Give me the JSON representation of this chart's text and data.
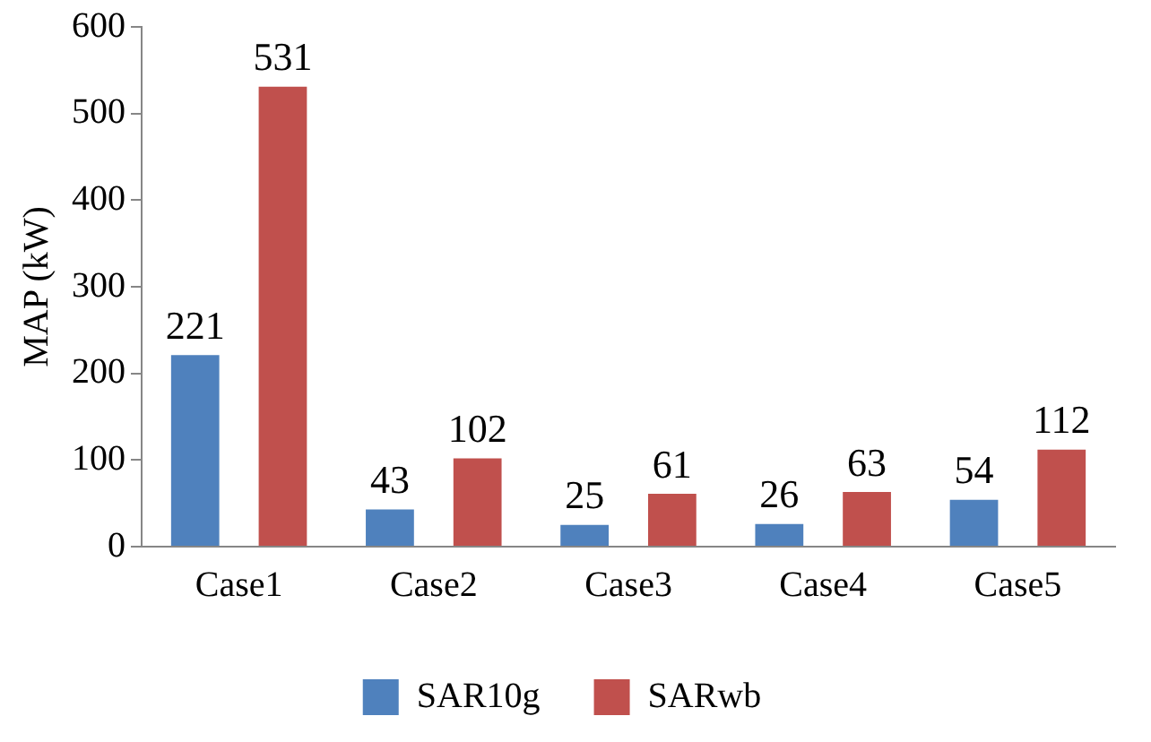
{
  "chart_data": {
    "type": "bar",
    "ylabel": "MAP (kW)",
    "categories": [
      "Case1",
      "Case2",
      "Case3",
      "Case4",
      "Case5"
    ],
    "series": [
      {
        "name": "SAR10g",
        "color": "#4f81bd",
        "values": [
          221,
          43,
          25,
          26,
          54
        ]
      },
      {
        "name": "SARwb",
        "color": "#c0504d",
        "values": [
          531,
          102,
          61,
          63,
          112
        ]
      }
    ],
    "ylim": [
      0,
      600
    ],
    "yticks": [
      0,
      100,
      200,
      300,
      400,
      500,
      600
    ],
    "grid": false,
    "legend": "bottom",
    "data_labels": true
  }
}
